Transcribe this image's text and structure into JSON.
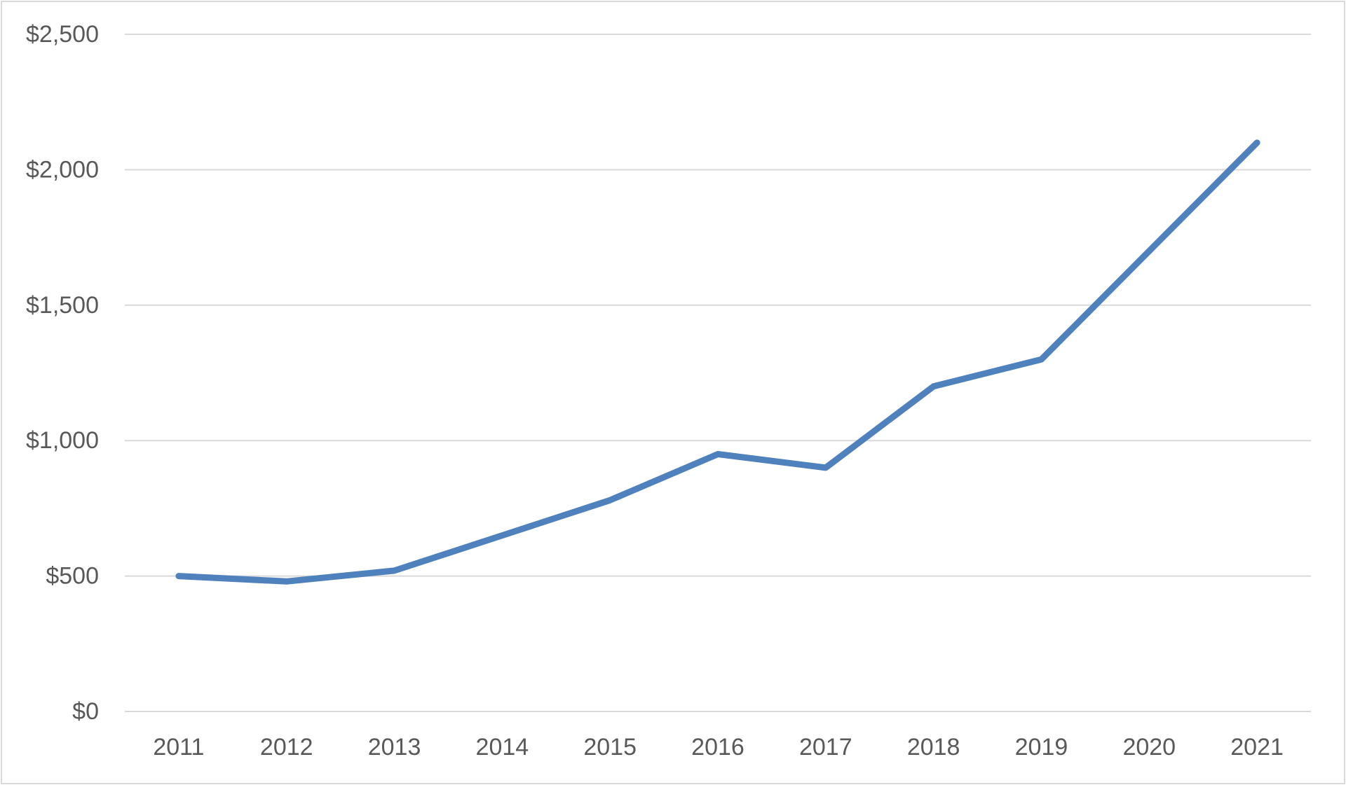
{
  "chart_data": {
    "type": "line",
    "title": "",
    "xlabel": "",
    "ylabel": "",
    "categories": [
      "2011",
      "2012",
      "2013",
      "2014",
      "2015",
      "2016",
      "2017",
      "2018",
      "2019",
      "2020",
      "2021"
    ],
    "series": [
      {
        "values": [
          500,
          480,
          520,
          650,
          780,
          950,
          900,
          1200,
          1300,
          1700,
          2100
        ],
        "color": "#4f81bd"
      }
    ],
    "ylim": [
      0,
      2500
    ],
    "y_ticks": [
      0,
      500,
      1000,
      1500,
      2000,
      2500
    ],
    "y_tick_labels": [
      "$0",
      "$500",
      "$1,000",
      "$1,500",
      "$2,000",
      "$2,500"
    ],
    "grid": true,
    "legend": "none",
    "colors": {
      "line": "#4f81bd",
      "grid": "#d9d9d9",
      "text": "#595959",
      "border": "#d9d9d9"
    }
  }
}
